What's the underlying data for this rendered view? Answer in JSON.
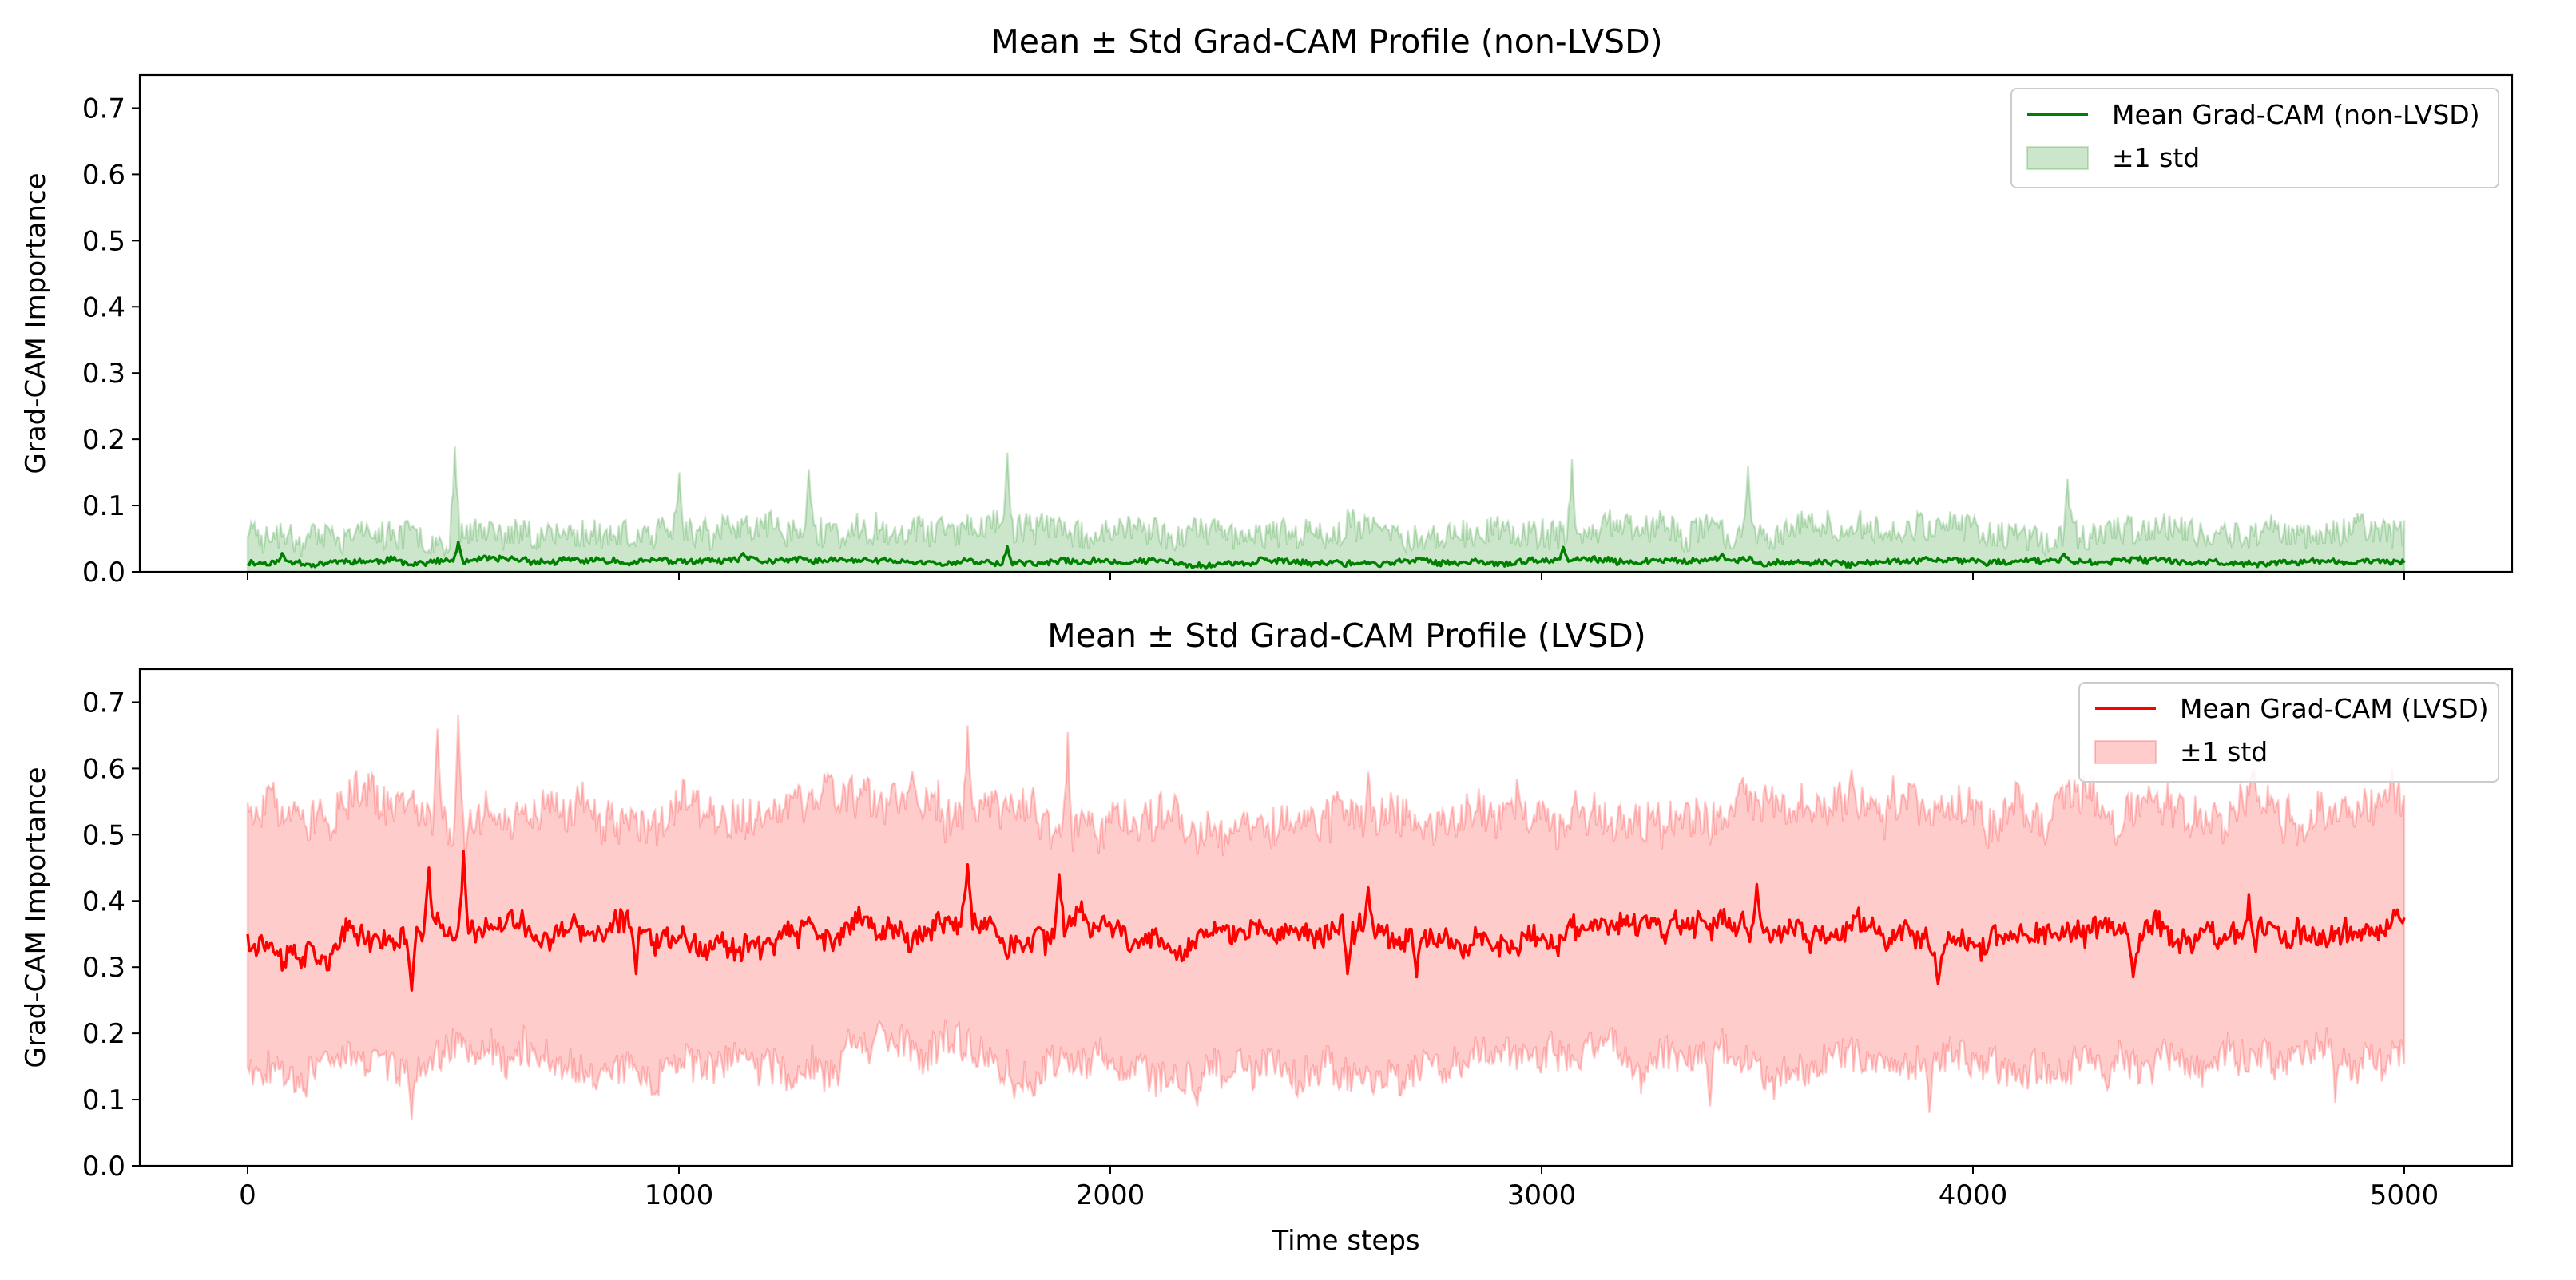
{
  "chart_data": [
    {
      "type": "line",
      "title": "Mean ± Std Grad-CAM Profile (non-LVSD)",
      "xlabel": "",
      "ylabel": "Grad-CAM Importance",
      "xlim": [
        -250,
        5250
      ],
      "ylim": [
        0,
        0.75
      ],
      "xticks": [
        0,
        1000,
        2000,
        3000,
        4000,
        5000
      ],
      "xtick_labels_visible": false,
      "yticks": [
        0.0,
        0.1,
        0.2,
        0.3,
        0.4,
        0.5,
        0.6,
        0.7
      ],
      "ytick_labels": [
        "0.0",
        "0.1",
        "0.2",
        "0.3",
        "0.4",
        "0.5",
        "0.6",
        "0.7"
      ],
      "x_range": [
        0,
        5000
      ],
      "legend_position": "top-right",
      "grid": false,
      "series": [
        {
          "name": "Mean Grad-CAM (non-LVSD)",
          "kind": "line",
          "color": "#008000",
          "profile": {
            "mean": 0.015,
            "noise": 0.004,
            "walk": 0.003,
            "seed": 11
          },
          "peaks": [
            [
              80,
              0.028
            ],
            [
              490,
              0.045
            ],
            [
              1150,
              0.028
            ],
            [
              1760,
              0.038
            ],
            [
              3050,
              0.037
            ],
            [
              3420,
              0.027
            ],
            [
              4210,
              0.027
            ]
          ]
        },
        {
          "name": "±1 std",
          "kind": "band",
          "color": "#008000",
          "opacity": 0.2,
          "lower": 0.0,
          "upper_profile": {
            "mean": 0.06,
            "noise": 0.022,
            "walk": 0.008,
            "seed": 23
          },
          "upper_peaks": [
            [
              480,
              0.19
            ],
            [
              1000,
              0.15
            ],
            [
              1300,
              0.155
            ],
            [
              1760,
              0.18
            ],
            [
              3070,
              0.17
            ],
            [
              3480,
              0.16
            ],
            [
              4220,
              0.14
            ]
          ]
        }
      ]
    },
    {
      "type": "line",
      "title": "Mean ± Std Grad-CAM Profile (LVSD)",
      "xlabel": "Time steps",
      "ylabel": "Grad-CAM Importance",
      "xlim": [
        -250,
        5250
      ],
      "ylim": [
        0,
        0.75
      ],
      "xticks": [
        0,
        1000,
        2000,
        3000,
        4000,
        5000
      ],
      "xtick_labels": [
        "0",
        "1000",
        "2000",
        "3000",
        "4000",
        "5000"
      ],
      "yticks": [
        0.0,
        0.1,
        0.2,
        0.3,
        0.4,
        0.5,
        0.6,
        0.7
      ],
      "ytick_labels": [
        "0.0",
        "0.1",
        "0.2",
        "0.3",
        "0.4",
        "0.5",
        "0.6",
        "0.7"
      ],
      "x_range": [
        0,
        5000
      ],
      "legend_position": "top-right",
      "grid": false,
      "series": [
        {
          "name": "Mean Grad-CAM (LVSD)",
          "kind": "line",
          "color": "#ff0000",
          "profile": {
            "mean": 0.35,
            "noise": 0.016,
            "walk": 0.018,
            "seed": 37
          },
          "peaks": [
            [
              500,
              0.475
            ],
            [
              420,
              0.45
            ],
            [
              1670,
              0.455
            ],
            [
              1880,
              0.44
            ],
            [
              2600,
              0.42
            ],
            [
              3500,
              0.425
            ],
            [
              4640,
              0.41
            ]
          ],
          "dips": [
            [
              380,
              0.265
            ],
            [
              900,
              0.29
            ],
            [
              2550,
              0.29
            ],
            [
              2710,
              0.285
            ],
            [
              3920,
              0.275
            ],
            [
              4370,
              0.285
            ]
          ]
        },
        {
          "name": "±1 std",
          "kind": "band",
          "color": "#ff0000",
          "opacity": 0.2,
          "upper_profile": {
            "mean": 0.53,
            "noise": 0.03,
            "walk": 0.025,
            "seed": 51
          },
          "upper_peaks": [
            [
              490,
              0.68
            ],
            [
              440,
              0.66
            ],
            [
              1670,
              0.665
            ],
            [
              1900,
              0.655
            ],
            [
              2600,
              0.595
            ],
            [
              4650,
              0.6
            ]
          ],
          "lower_profile": {
            "mean": 0.16,
            "noise": 0.025,
            "walk": 0.02,
            "seed": 67
          },
          "lower_dips": [
            [
              380,
              0.07
            ],
            [
              2200,
              0.09
            ],
            [
              3390,
              0.09
            ],
            [
              3900,
              0.08
            ],
            [
              4840,
              0.095
            ]
          ]
        }
      ]
    }
  ]
}
